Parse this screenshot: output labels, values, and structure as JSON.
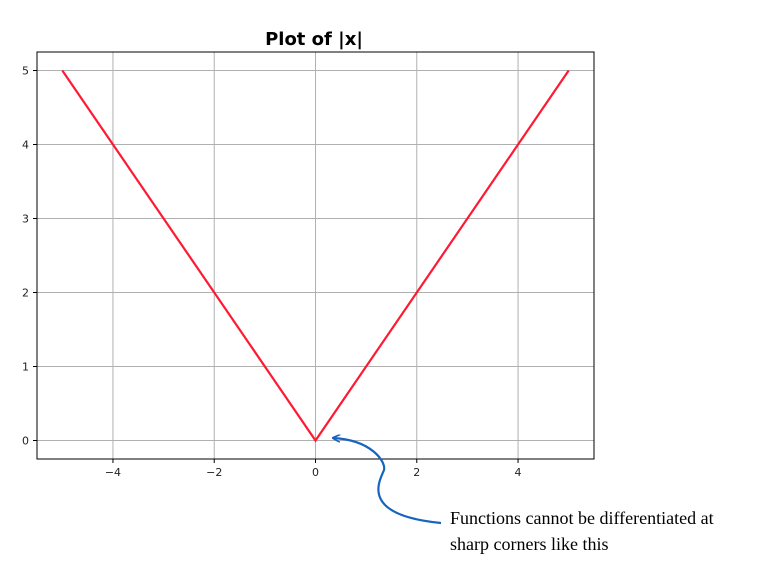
{
  "chart_data": {
    "type": "line",
    "title": "Plot of |x|",
    "xlabel": "",
    "ylabel": "",
    "xlim": [
      -5.5,
      5.5
    ],
    "ylim": [
      -0.25,
      5.25
    ],
    "x_ticks": [
      -4,
      -2,
      0,
      2,
      4
    ],
    "y_ticks": [
      0,
      1,
      2,
      3,
      4,
      5
    ],
    "x_tick_labels": [
      "−4",
      "−2",
      "0",
      "2",
      "4"
    ],
    "y_tick_labels": [
      "0",
      "1",
      "2",
      "3",
      "4",
      "5"
    ],
    "grid": true,
    "series": [
      {
        "color": "#ff1a33",
        "x": [
          -5,
          0,
          5
        ],
        "y": [
          5,
          0,
          5
        ]
      }
    ],
    "annotation": {
      "text_lines": [
        "Functions cannot be differentiated at",
        "sharp corners like this"
      ],
      "points_to": [
        0,
        0
      ],
      "arrow_color": "#1565c0"
    }
  }
}
